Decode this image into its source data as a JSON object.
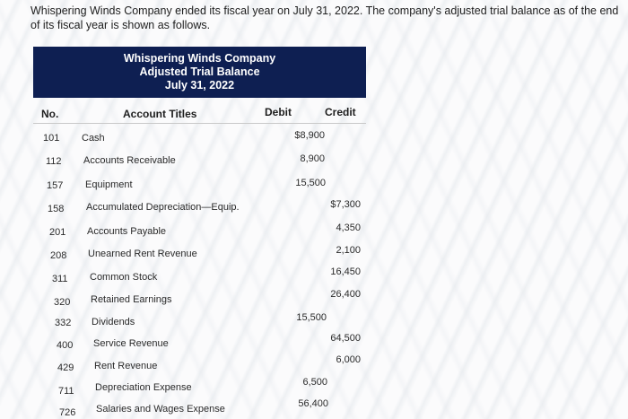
{
  "intro_text": "Whispering Winds Company ended its fiscal year on July 31, 2022. The company's adjusted trial balance as of the end of its fiscal year is shown as follows.",
  "header": {
    "company": "Whispering Winds Company",
    "title": "Adjusted Trial Balance",
    "date": "July 31, 2022"
  },
  "columns": {
    "no": "No.",
    "account_titles": "Account Titles",
    "debit": "Debit",
    "credit": "Credit"
  },
  "rows": [
    {
      "no": "101",
      "title": "Cash",
      "debit": "$8,900",
      "credit": ""
    },
    {
      "no": "112",
      "title": "Accounts Receivable",
      "debit": "8,900",
      "credit": ""
    },
    {
      "no": "157",
      "title": "Equipment",
      "debit": "15,500",
      "credit": ""
    },
    {
      "no": "158",
      "title": "Accumulated Depreciation—Equip.",
      "debit": "",
      "credit": "$7,300"
    },
    {
      "no": "201",
      "title": "Accounts Payable",
      "debit": "",
      "credit": "4,350"
    },
    {
      "no": "208",
      "title": "Unearned Rent Revenue",
      "debit": "",
      "credit": "2,100"
    },
    {
      "no": "311",
      "title": "Common Stock",
      "debit": "",
      "credit": "16,450"
    },
    {
      "no": "320",
      "title": "Retained Earnings",
      "debit": "",
      "credit": "26,400"
    },
    {
      "no": "332",
      "title": "Dividends",
      "debit": "15,500",
      "credit": ""
    },
    {
      "no": "400",
      "title": "Service Revenue",
      "debit": "",
      "credit": "64,500"
    },
    {
      "no": "429",
      "title": "Rent Revenue",
      "debit": "",
      "credit": "6,000"
    },
    {
      "no": "711",
      "title": "Depreciation Expense",
      "debit": "6,500",
      "credit": ""
    },
    {
      "no": "726",
      "title": "Salaries and Wages Expense",
      "debit": "56,400",
      "credit": ""
    }
  ]
}
